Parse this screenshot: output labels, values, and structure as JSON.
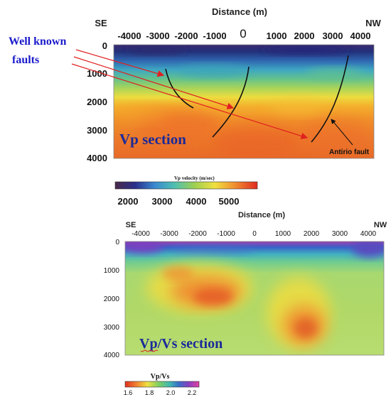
{
  "top": {
    "title": "Distance (m)",
    "left_label": "SE",
    "right_label": "NW",
    "x_ticks": [
      "-4000",
      "-3000",
      "-2000",
      "-1000",
      "0",
      "1000",
      "2000",
      "3000",
      "4000"
    ],
    "y_ticks": [
      "0",
      "1000",
      "2000",
      "3000",
      "4000"
    ],
    "section_label": "Vp section",
    "fault_annotation": "Antirio fault",
    "callout_line1": "Well known",
    "callout_line2": "faults",
    "colorbar_title": "Vp velocity (m/sec)",
    "colorbar_ticks": [
      "2000",
      "3000",
      "4000",
      "5000"
    ]
  },
  "bottom": {
    "title": "Distance (m)",
    "left_label": "SE",
    "right_label": "NW",
    "x_ticks": [
      "-4000",
      "-3000",
      "-2000",
      "-1000",
      "0",
      "1000",
      "2000",
      "3000",
      "4000"
    ],
    "y_ticks": [
      "0",
      "1000",
      "2000",
      "3000",
      "4000"
    ],
    "section_label": "Vp/Vs section",
    "colorbar_title": "Vp/Vs",
    "colorbar_ticks": [
      "1.6",
      "1.8",
      "2.0",
      "2.2"
    ]
  },
  "colors": {
    "callout": "#1a1acc",
    "arrows": "#e02020",
    "section_label": "#1a2a9a"
  }
}
